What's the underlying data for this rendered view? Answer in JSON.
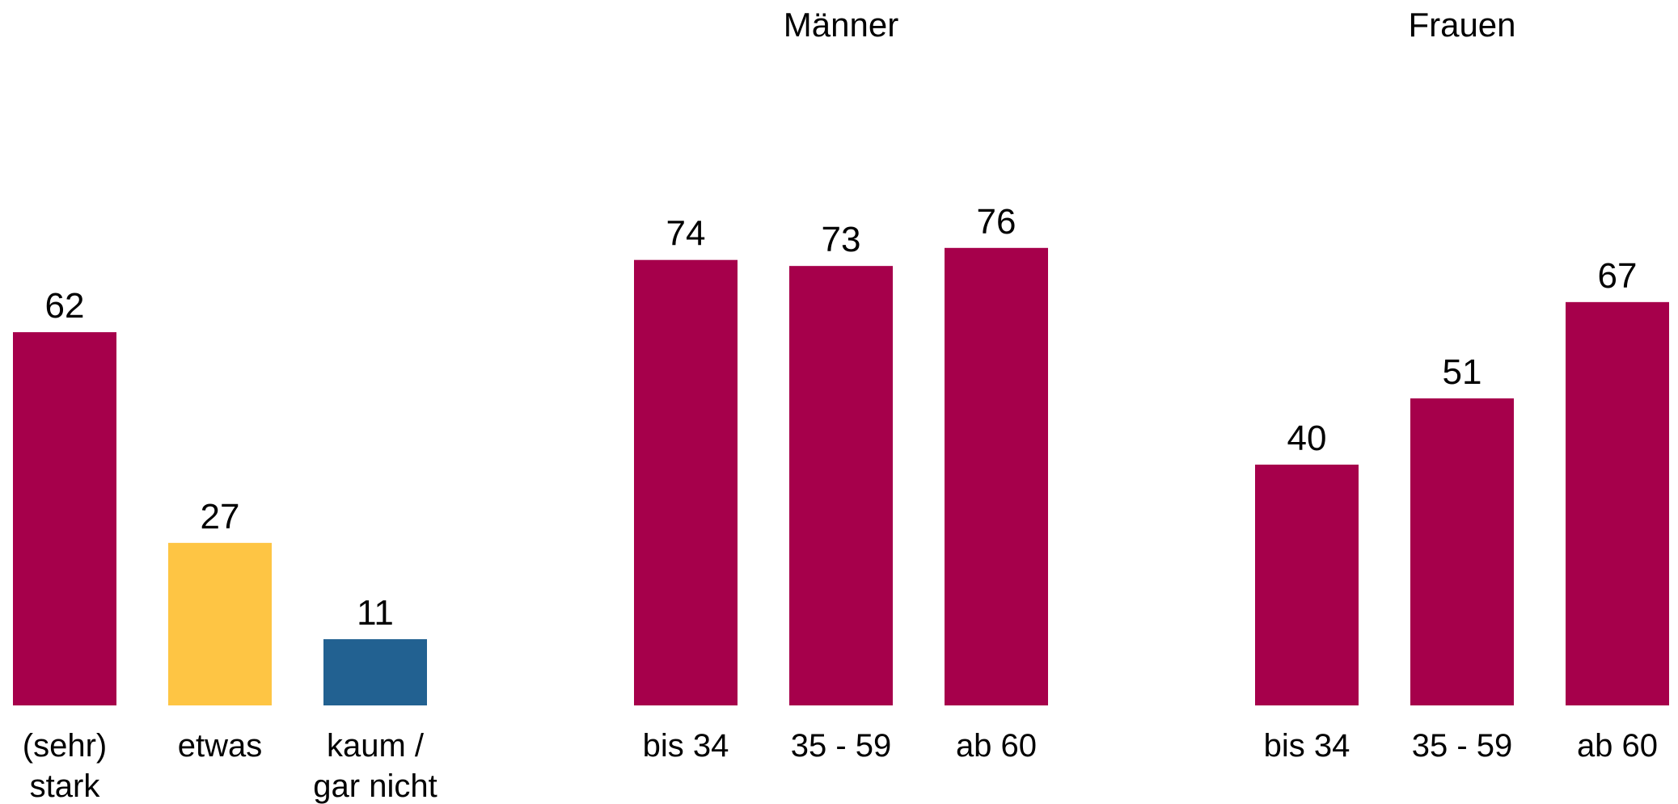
{
  "chart_data": [
    {
      "type": "bar",
      "title": "",
      "categories": [
        "(sehr) stark",
        "etwas",
        "kaum / gar nicht"
      ],
      "category_lines": [
        [
          "(sehr)",
          "stark"
        ],
        [
          "etwas"
        ],
        [
          "kaum /",
          "gar nicht"
        ]
      ],
      "values": [
        62,
        27,
        11
      ],
      "colors": [
        "#A6004B",
        "#FEC544",
        "#226191"
      ],
      "ylim": [
        0,
        80
      ]
    },
    {
      "type": "bar",
      "title": "Männer",
      "categories": [
        "bis 34",
        "35 - 59",
        "ab 60"
      ],
      "category_lines": [
        [
          "bis 34"
        ],
        [
          "35 - 59"
        ],
        [
          "ab 60"
        ]
      ],
      "values": [
        74,
        73,
        76
      ],
      "colors": [
        "#A6004B",
        "#A6004B",
        "#A6004B"
      ],
      "ylim": [
        0,
        80
      ]
    },
    {
      "type": "bar",
      "title": "Frauen",
      "categories": [
        "bis 34",
        "35 - 59",
        "ab 60"
      ],
      "category_lines": [
        [
          "bis 34"
        ],
        [
          "35 - 59"
        ],
        [
          "ab 60"
        ]
      ],
      "values": [
        40,
        51,
        67
      ],
      "colors": [
        "#A6004B",
        "#A6004B",
        "#A6004B"
      ],
      "ylim": [
        0,
        80
      ]
    }
  ]
}
